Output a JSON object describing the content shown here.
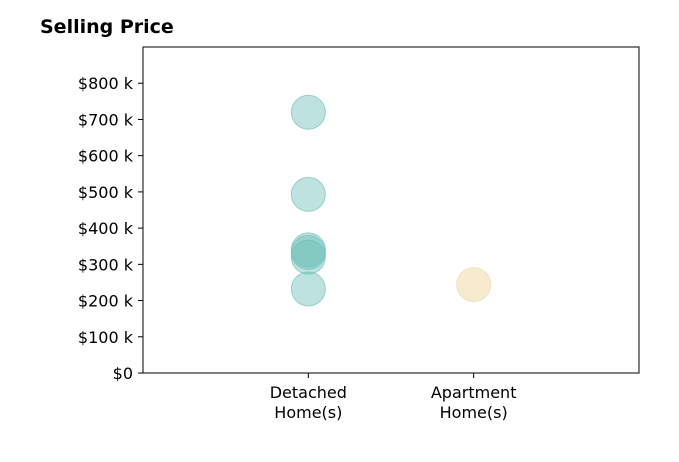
{
  "chart_data": {
    "type": "scatter",
    "title": "Selling Price",
    "xlabel": "",
    "ylabel": "",
    "categories": [
      [
        "Detached",
        "Home(s)"
      ],
      [
        "Apartment",
        "Home(s)"
      ]
    ],
    "y_ticks": [
      "$0",
      "$100 k",
      "$200 k",
      "$300 k",
      "$400 k",
      "$500 k",
      "$600 k",
      "$700 k",
      "$800 k"
    ],
    "y_tick_values": [
      0,
      100000,
      200000,
      300000,
      400000,
      500000,
      600000,
      700000,
      800000
    ],
    "ylim": [
      0,
      900000
    ],
    "xlim": [
      -1,
      2
    ],
    "grid": false,
    "series": [
      {
        "category_index": 0,
        "color": "#6dbfb8",
        "opacity": 0.45,
        "values": [
          720000,
          493000,
          340000,
          333000,
          320000,
          232000
        ]
      },
      {
        "category_index": 1,
        "color": "#f0d9a8",
        "opacity": 0.55,
        "values": [
          244000
        ]
      }
    ]
  }
}
